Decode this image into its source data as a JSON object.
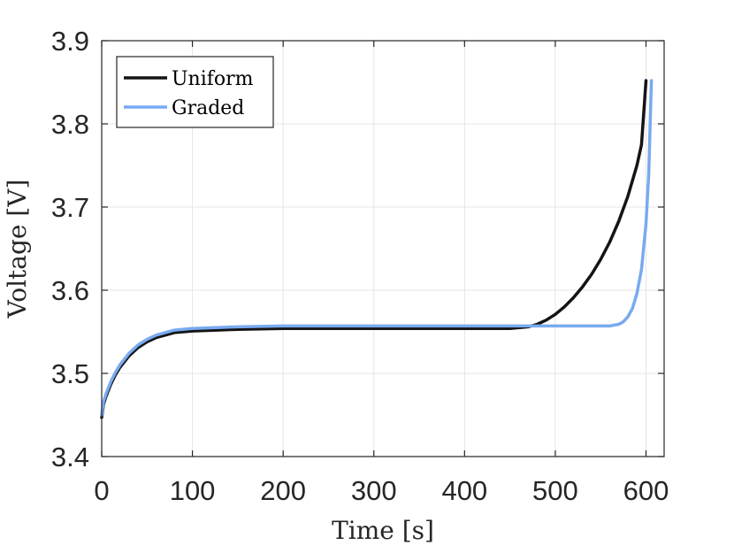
{
  "chart_data": {
    "type": "line",
    "xlabel": "Time [s]",
    "ylabel": "Voltage [V]",
    "xlim": [
      0,
      620
    ],
    "ylim": [
      3.4,
      3.9
    ],
    "xticks": [
      0,
      100,
      200,
      300,
      400,
      500,
      600
    ],
    "yticks": [
      3.4,
      3.5,
      3.6,
      3.7,
      3.8,
      3.9
    ],
    "xtick_labels": [
      "0",
      "100",
      "200",
      "300",
      "400",
      "500",
      "600"
    ],
    "ytick_labels": [
      "3.4",
      "3.5",
      "3.6",
      "3.7",
      "3.8",
      "3.9"
    ],
    "grid": true,
    "legend_position": "top-left",
    "series": [
      {
        "name": "Uniform",
        "color": "#141414",
        "x": [
          0,
          2,
          5,
          10,
          15,
          20,
          30,
          40,
          50,
          60,
          80,
          100,
          150,
          200,
          250,
          300,
          350,
          400,
          450,
          470,
          480,
          490,
          500,
          510,
          520,
          530,
          540,
          550,
          560,
          570,
          580,
          590,
          595,
          600
        ],
        "y": [
          3.447,
          3.463,
          3.473,
          3.487,
          3.498,
          3.507,
          3.521,
          3.531,
          3.538,
          3.543,
          3.549,
          3.551,
          3.553,
          3.554,
          3.554,
          3.554,
          3.554,
          3.554,
          3.554,
          3.556,
          3.559,
          3.564,
          3.571,
          3.58,
          3.591,
          3.604,
          3.619,
          3.637,
          3.658,
          3.683,
          3.713,
          3.75,
          3.775,
          3.852
        ]
      },
      {
        "name": "Graded",
        "color": "#78aaf0",
        "x": [
          0,
          2,
          5,
          10,
          15,
          20,
          30,
          40,
          50,
          60,
          80,
          100,
          150,
          200,
          250,
          300,
          350,
          400,
          450,
          500,
          530,
          550,
          560,
          570,
          575,
          580,
          585,
          590,
          595,
          600,
          603,
          606
        ],
        "y": [
          3.45,
          3.466,
          3.476,
          3.49,
          3.501,
          3.51,
          3.524,
          3.534,
          3.541,
          3.546,
          3.552,
          3.554,
          3.556,
          3.557,
          3.557,
          3.557,
          3.557,
          3.557,
          3.557,
          3.557,
          3.557,
          3.557,
          3.557,
          3.559,
          3.562,
          3.568,
          3.578,
          3.596,
          3.625,
          3.68,
          3.74,
          3.852
        ]
      }
    ]
  }
}
